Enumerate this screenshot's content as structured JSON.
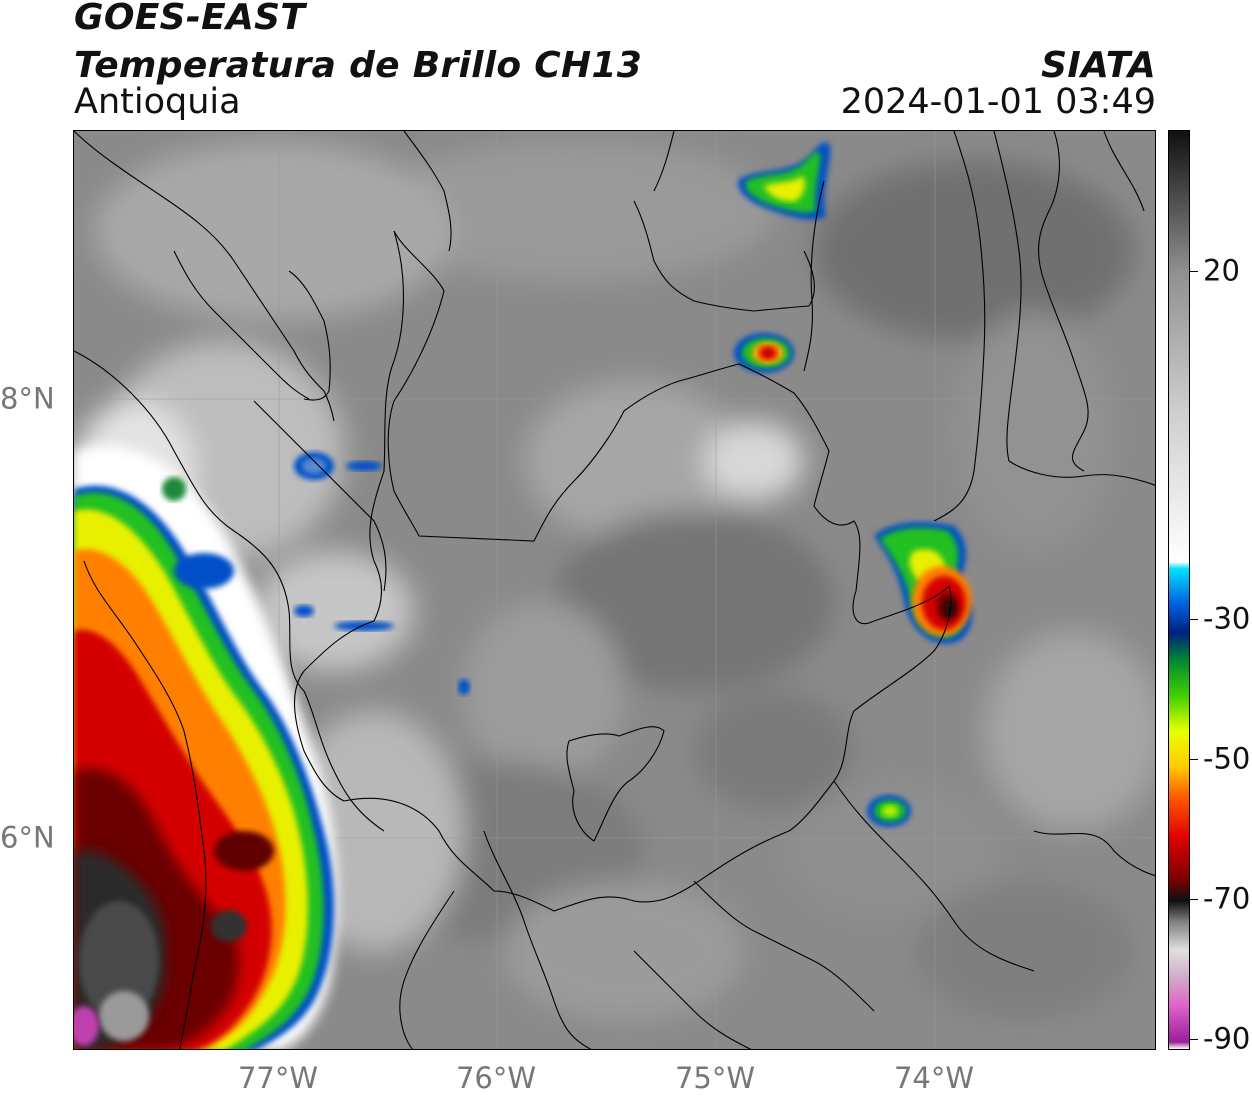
{
  "header": {
    "satellite": "GOES-EAST",
    "product": "Temperatura de Brillo CH13",
    "region": "Antioquia",
    "agency": "SIATA",
    "datetime": "2024-01-01 03:49"
  },
  "axes": {
    "longitude_labels": [
      "77°W",
      "76°W",
      "75°W",
      "74°W"
    ],
    "latitude_labels": [
      "8°N",
      "6°N"
    ]
  },
  "colorbar": {
    "tick_labels": [
      "20",
      "-30",
      "-50",
      "-70",
      "-90"
    ],
    "range": [
      -90,
      40
    ],
    "stops": [
      {
        "value": -90,
        "color": "#ffffff"
      },
      {
        "value": -89,
        "color": "#9a1f9a"
      },
      {
        "value": -84,
        "color": "#e060c8"
      },
      {
        "value": -80,
        "color": "#d0a8c8"
      },
      {
        "value": -76,
        "color": "#e0e0e0"
      },
      {
        "value": -72,
        "color": "#808080"
      },
      {
        "value": -69,
        "color": "#101010"
      },
      {
        "value": -66,
        "color": "#7a0000"
      },
      {
        "value": -60,
        "color": "#e00000"
      },
      {
        "value": -54,
        "color": "#ff6000"
      },
      {
        "value": -50,
        "color": "#ffcc00"
      },
      {
        "value": -45,
        "color": "#e8ff00"
      },
      {
        "value": -40,
        "color": "#40d000"
      },
      {
        "value": -35,
        "color": "#008a30"
      },
      {
        "value": -31,
        "color": "#002080"
      },
      {
        "value": -27,
        "color": "#0060e0"
      },
      {
        "value": -22,
        "color": "#00e0ff"
      },
      {
        "value": -21,
        "color": "#ffffff"
      },
      {
        "value": 0,
        "color": "#cfcfcf"
      },
      {
        "value": 20,
        "color": "#909090"
      },
      {
        "value": 40,
        "color": "#101010"
      }
    ]
  }
}
